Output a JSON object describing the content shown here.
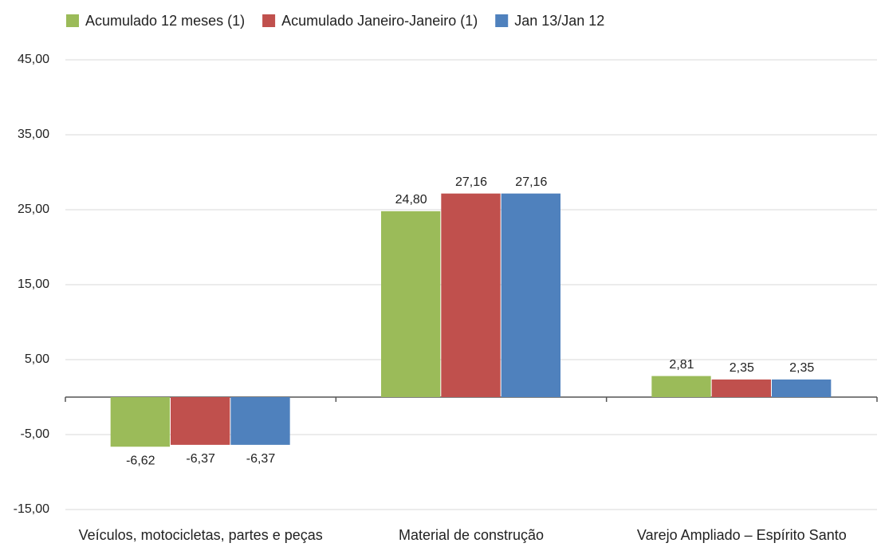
{
  "chart_data": {
    "type": "bar",
    "categories": [
      "Veículos, motocicletas, partes e peças",
      "Material de construção",
      "Varejo Ampliado – Espírito Santo"
    ],
    "series": [
      {
        "name": "Acumulado 12 meses (1)",
        "color": "#9bbb59",
        "values": [
          -6.62,
          24.8,
          2.81
        ],
        "value_labels": [
          "-6,62",
          "24,80",
          "2,81"
        ]
      },
      {
        "name": "Acumulado Janeiro-Janeiro (1)",
        "color": "#c0504d",
        "values": [
          -6.37,
          27.16,
          2.35
        ],
        "value_labels": [
          "-6,37",
          "27,16",
          "2,35"
        ]
      },
      {
        "name": "Jan 13/Jan 12",
        "color": "#4f81bd",
        "values": [
          -6.37,
          27.16,
          2.35
        ],
        "value_labels": [
          "-6,37",
          "27,16",
          "2,35"
        ]
      }
    ],
    "ylim": [
      -15,
      45
    ],
    "yticks": [
      {
        "value": -15,
        "label": "-15,00"
      },
      {
        "value": -5,
        "label": "-5,00"
      },
      {
        "value": 5,
        "label": "5,00"
      },
      {
        "value": 15,
        "label": "15,00"
      },
      {
        "value": 25,
        "label": "25,00"
      },
      {
        "value": 35,
        "label": "35,00"
      },
      {
        "value": 45,
        "label": "45,00"
      }
    ],
    "grid": true,
    "legend": "top"
  }
}
